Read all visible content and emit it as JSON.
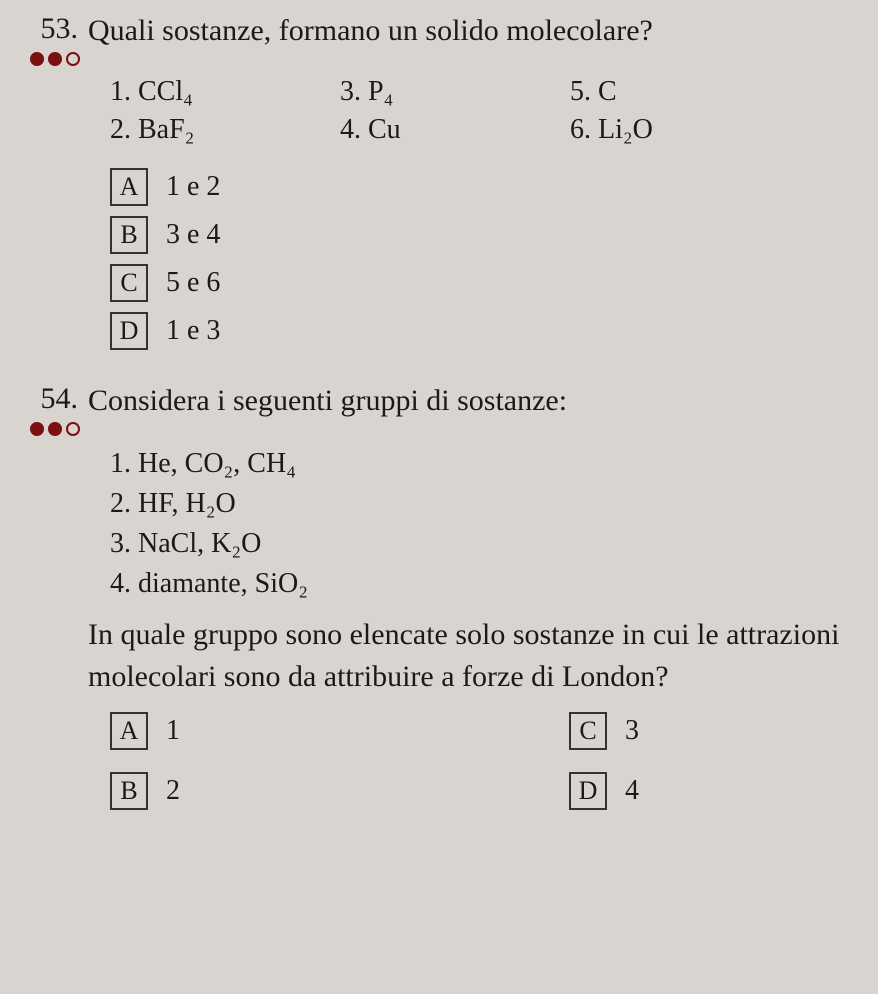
{
  "q53": {
    "number": "53.",
    "text": "Quali sostanze, formano un solido molecolare?",
    "dots": [
      "filled",
      "filled",
      "empty"
    ],
    "subs": {
      "s1": "1.  CCl₄",
      "s2": "2.  BaF₂",
      "s3": "3.  P₄",
      "s4": "4.  Cu",
      "s5": "5.  C",
      "s6": "6.  Li₂O"
    },
    "answers": {
      "A": {
        "box": "A",
        "text": "1 e 2"
      },
      "B": {
        "box": "B",
        "text": "3 e 4"
      },
      "C": {
        "box": "C",
        "text": "5 e 6"
      },
      "D": {
        "box": "D",
        "text": "1 e 3"
      }
    }
  },
  "q54": {
    "number": "54.",
    "text": "Considera i seguenti gruppi di sostanze:",
    "dots": [
      "filled",
      "filled",
      "empty"
    ],
    "subs": {
      "s1": "1.  He, CO₂, CH₄",
      "s2": "2.  HF, H₂O",
      "s3": "3.  NaCl, K₂O",
      "s4": "4.  diamante, SiO₂"
    },
    "follow": "In quale gruppo sono elencate solo sostanze in cui le attrazioni molecolari sono da attribuire a forze di London?",
    "answers": {
      "A": {
        "box": "A",
        "text": "1"
      },
      "B": {
        "box": "B",
        "text": "2"
      },
      "C": {
        "box": "C",
        "text": "3"
      },
      "D": {
        "box": "D",
        "text": "4"
      }
    }
  }
}
